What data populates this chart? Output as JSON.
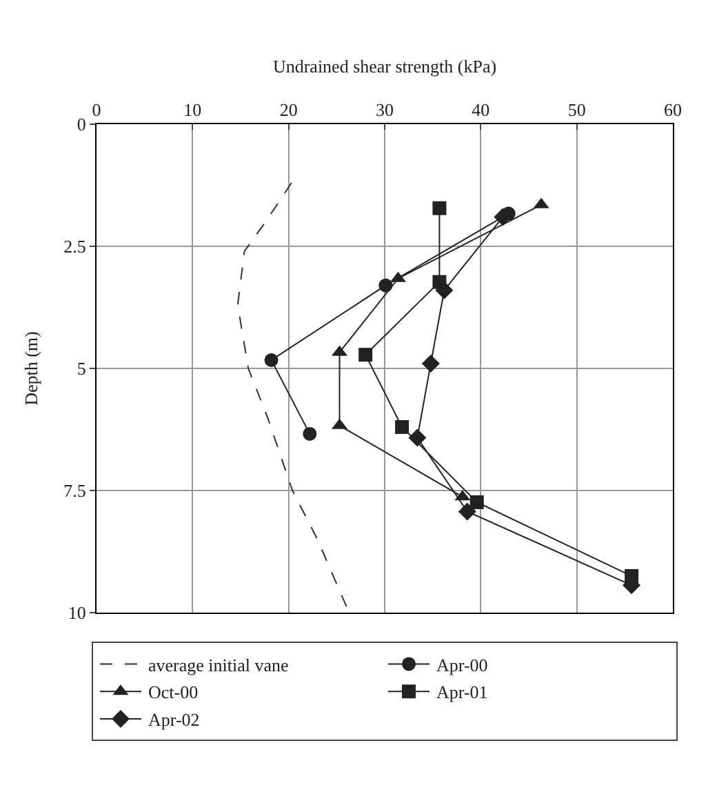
{
  "chart_data": {
    "type": "line",
    "xlabel": "Undrained shear strength (kPa)",
    "ylabel": "Depth (m)",
    "xlim": [
      0,
      60
    ],
    "xticks": [
      0,
      10,
      20,
      30,
      40,
      50,
      60
    ],
    "ylim": [
      10,
      0
    ],
    "yticks": [
      0,
      2.5,
      5,
      7.5,
      10
    ],
    "grid": true,
    "legend": "bottom",
    "series": [
      {
        "name": "average initial vane",
        "color": "#333333",
        "marker": "none",
        "line_style": "dashed",
        "x": [
          20.3,
          17.6,
          15.4,
          14.7,
          15.8,
          17.8,
          20.4,
          23,
          26.3
        ],
        "values": [
          1.2,
          2,
          2.6,
          3.7,
          5,
          6,
          7.5,
          8.5,
          10
        ]
      },
      {
        "name": "Apr-00",
        "color": "#222222",
        "marker": "circle",
        "line_style": "solid",
        "x": [
          42.9,
          30.1,
          18.2,
          22.2
        ],
        "values": [
          1.83,
          3.3,
          4.83,
          6.34
        ]
      },
      {
        "name": "Oct-00",
        "color": "#222222",
        "marker": "triangle",
        "line_style": "solid",
        "x": [
          46.3,
          31.4,
          25.3,
          25.3,
          38.1
        ],
        "values": [
          1.65,
          3.16,
          4.67,
          6.17,
          7.63
        ]
      },
      {
        "name": "Apr-01",
        "color": "#222222",
        "marker": "square",
        "line_style": "solid",
        "x": [
          35.7,
          35.7,
          28,
          31.8,
          39.6,
          55.7
        ],
        "values": [
          1.72,
          3.23,
          4.72,
          6.2,
          7.74,
          9.25
        ]
      },
      {
        "name": "Apr-02",
        "color": "#222222",
        "marker": "diamond",
        "line_style": "solid",
        "x": [
          42.3,
          36.2,
          34.8,
          33.4,
          38.6,
          55.7
        ],
        "values": [
          1.9,
          3.4,
          4.9,
          6.42,
          7.93,
          9.44
        ]
      }
    ]
  }
}
